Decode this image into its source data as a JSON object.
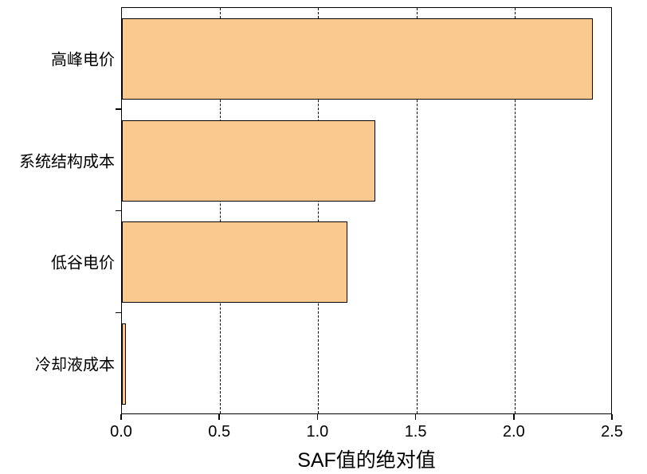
{
  "chart_data": {
    "type": "bar",
    "orientation": "horizontal",
    "title": "",
    "categories": [
      "高峰电价",
      "系统结构成本",
      "低谷电价",
      "冷却液成本"
    ],
    "values": [
      2.4,
      1.29,
      1.15,
      0.02
    ],
    "xlabel": "SAF值的绝对值",
    "ylabel": "",
    "xlim": [
      0,
      2.5
    ],
    "xtick_labels": [
      "0.0",
      "0.5",
      "1.0",
      "1.5",
      "2.0",
      "2.5"
    ],
    "grid": "vertical-dashed-at-interior-major-ticks",
    "legend": "none",
    "bar_fill_color": "#FAC98F",
    "bar_border_color": "#000000",
    "axis_color": "#000000",
    "background_color": "#FFFFFF",
    "bar_height_fraction": 0.8
  }
}
